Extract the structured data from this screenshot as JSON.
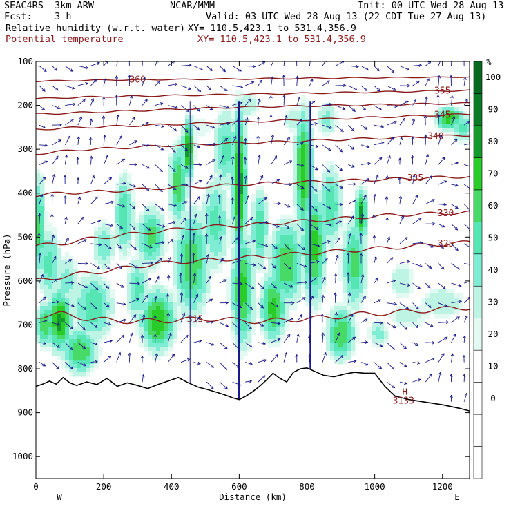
{
  "header": {
    "line1_left": "SEAC4RS  3km ARW",
    "line1_mid": "NCAR/MMM",
    "line1_right": "Init: 00 UTC Wed 28 Aug 13",
    "line2_left": "Fcst:    3 h",
    "line2_right": "Valid: 03 UTC Wed 28 Aug 13 (22 CDT Tue 27 Aug 13)",
    "line3_left": "Relative humidity (w.r.t. water)",
    "line3_right": "XY= 110.5,423.1 to 531.4,356.9",
    "line4_left": "Potential temperature",
    "line4_right": "XY= 110.5,423.1 to 531.4,356.9"
  },
  "colors": {
    "rh_levels": [
      "#ffffff",
      "#ffffff",
      "#ffffff",
      "#ffffff",
      "#e3faf2",
      "#bdf4e3",
      "#7fecd4",
      "#55e6b4",
      "#47da66",
      "#29cc29",
      "#149a2a",
      "#0b7a24",
      "#086a1e"
    ],
    "theta": "#8b1a1a",
    "wind": "#1a1a8a",
    "terrain": "#000000"
  },
  "chart_data": {
    "type": "heatmap",
    "title": "",
    "xlabel": "Distance (km)",
    "ylabel": "Pressure (hPa)",
    "xlim": [
      0,
      1280
    ],
    "ylim": [
      1050,
      100
    ],
    "x_ticks": [
      "0",
      "200",
      "400",
      "600",
      "800",
      "1000",
      "1200"
    ],
    "y_ticks": [
      "100",
      "200",
      "300",
      "400",
      "500",
      "600",
      "700",
      "800",
      "900",
      "1000"
    ],
    "x_end_labels": {
      "left": "W",
      "right": "E"
    },
    "colorbar": {
      "unit": "%",
      "tick_labels": [
        "0",
        "10",
        "20",
        "30",
        "40",
        "50",
        "60",
        "70",
        "80",
        "90",
        "100"
      ]
    },
    "terrain_profile": {
      "x_km": [
        0,
        20,
        40,
        60,
        80,
        100,
        120,
        150,
        180,
        210,
        240,
        270,
        300,
        330,
        360,
        390,
        420,
        450,
        480,
        510,
        540,
        560,
        580,
        600,
        620,
        640,
        660,
        680,
        700,
        720,
        740,
        760,
        780,
        800,
        820,
        850,
        880,
        910,
        940,
        970,
        1000,
        1030,
        1060,
        1100,
        1150,
        1200,
        1250,
        1280
      ],
      "p_hpa": [
        840,
        835,
        828,
        835,
        820,
        832,
        838,
        830,
        836,
        822,
        840,
        832,
        838,
        845,
        836,
        828,
        820,
        832,
        842,
        848,
        855,
        860,
        866,
        870,
        862,
        852,
        840,
        826,
        810,
        822,
        830,
        808,
        800,
        798,
        805,
        815,
        818,
        812,
        808,
        810,
        810,
        840,
        862,
        870,
        876,
        882,
        890,
        896
      ]
    },
    "theta_contours": [
      {
        "level": 315,
        "label": "315",
        "label_x_km": 470,
        "p_hpa": [
          680,
          675,
          685,
          690,
          692,
          690,
          688,
          686,
          690,
          692,
          688,
          685,
          680,
          675,
          672,
          668,
          664,
          660
        ]
      },
      {
        "level": 325,
        "label": "325",
        "label_x_km": 1210,
        "p_hpa": [
          600,
          590,
          582,
          575,
          566,
          560,
          555,
          552,
          548,
          544,
          540,
          536,
          532,
          528,
          524,
          520,
          516,
          512
        ]
      },
      {
        "level": 330,
        "label": "330",
        "label_x_km": 1210,
        "p_hpa": [
          520,
          515,
          505,
          498,
          492,
          486,
          480,
          476,
          474,
          470,
          466,
          462,
          458,
          454,
          450,
          448,
          446,
          444
        ]
      },
      {
        "level": 335,
        "label": "335",
        "label_x_km": 1120,
        "p_hpa": [
          405,
          400,
          398,
          395,
          392,
          388,
          386,
          384,
          380,
          378,
          376,
          374,
          372,
          370,
          368,
          366,
          364,
          362
        ]
      },
      {
        "level": 340,
        "label": "340",
        "label_x_km": 1180,
        "p_hpa": [
          310,
          305,
          300,
          298,
          295,
          292,
          290,
          288,
          286,
          284,
          282,
          280,
          278,
          276,
          274,
          272,
          270,
          268
        ]
      },
      {
        "level": 345,
        "label": "345",
        "label_x_km": 1200,
        "p_hpa": [
          255,
          252,
          250,
          248,
          246,
          244,
          242,
          240,
          238,
          236,
          234,
          232,
          230,
          228,
          226,
          224,
          222,
          220
        ]
      },
      {
        "level": 350,
        "label": "",
        "label_x_km": 0,
        "p_hpa": [
          220,
          218,
          216,
          214,
          212,
          210,
          208,
          206,
          204,
          203,
          202,
          201,
          200,
          199,
          198,
          197,
          196,
          195
        ]
      },
      {
        "level": 355,
        "label": "355",
        "label_x_km": 1200,
        "p_hpa": [
          185,
          183,
          181,
          180,
          179,
          178,
          177,
          176,
          175,
          174,
          173,
          172,
          171,
          170,
          169,
          168,
          167,
          166
        ]
      },
      {
        "level": 360,
        "label": "360",
        "label_x_km": 300,
        "p_hpa": [
          145,
          144,
          143,
          142,
          142,
          141,
          141,
          140,
          140,
          139,
          139,
          138,
          138,
          137,
          137,
          136,
          136,
          135
        ]
      }
    ],
    "theta_contour_x_km": [
      0,
      75,
      150,
      225,
      300,
      375,
      450,
      525,
      600,
      675,
      750,
      825,
      900,
      975,
      1050,
      1125,
      1200,
      1280
    ],
    "surface_label": {
      "text": "3133",
      "sub": "H",
      "x_km": 1040,
      "p_hpa": 870
    }
  }
}
